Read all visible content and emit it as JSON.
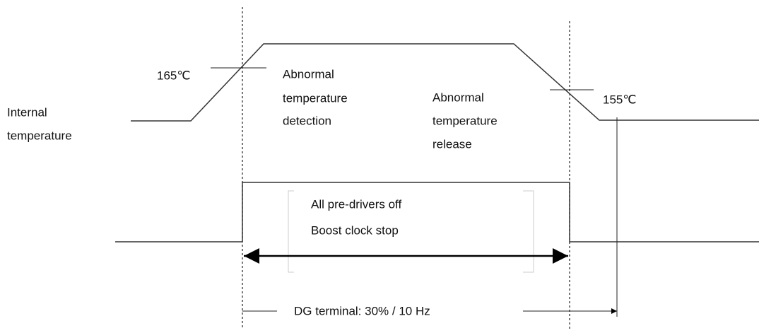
{
  "labels": {
    "threshold_high": "165℃",
    "threshold_low": "155℃",
    "internal_temperature": [
      "Internal",
      "temperature"
    ],
    "detection": [
      "Abnormal",
      "temperature",
      "detection"
    ],
    "release": [
      "Abnormal",
      "temperature",
      "release"
    ],
    "action": [
      "All pre-drivers off",
      "Boost clock stop"
    ],
    "dg_terminal": "DG terminal: 30% / 10 Hz"
  }
}
